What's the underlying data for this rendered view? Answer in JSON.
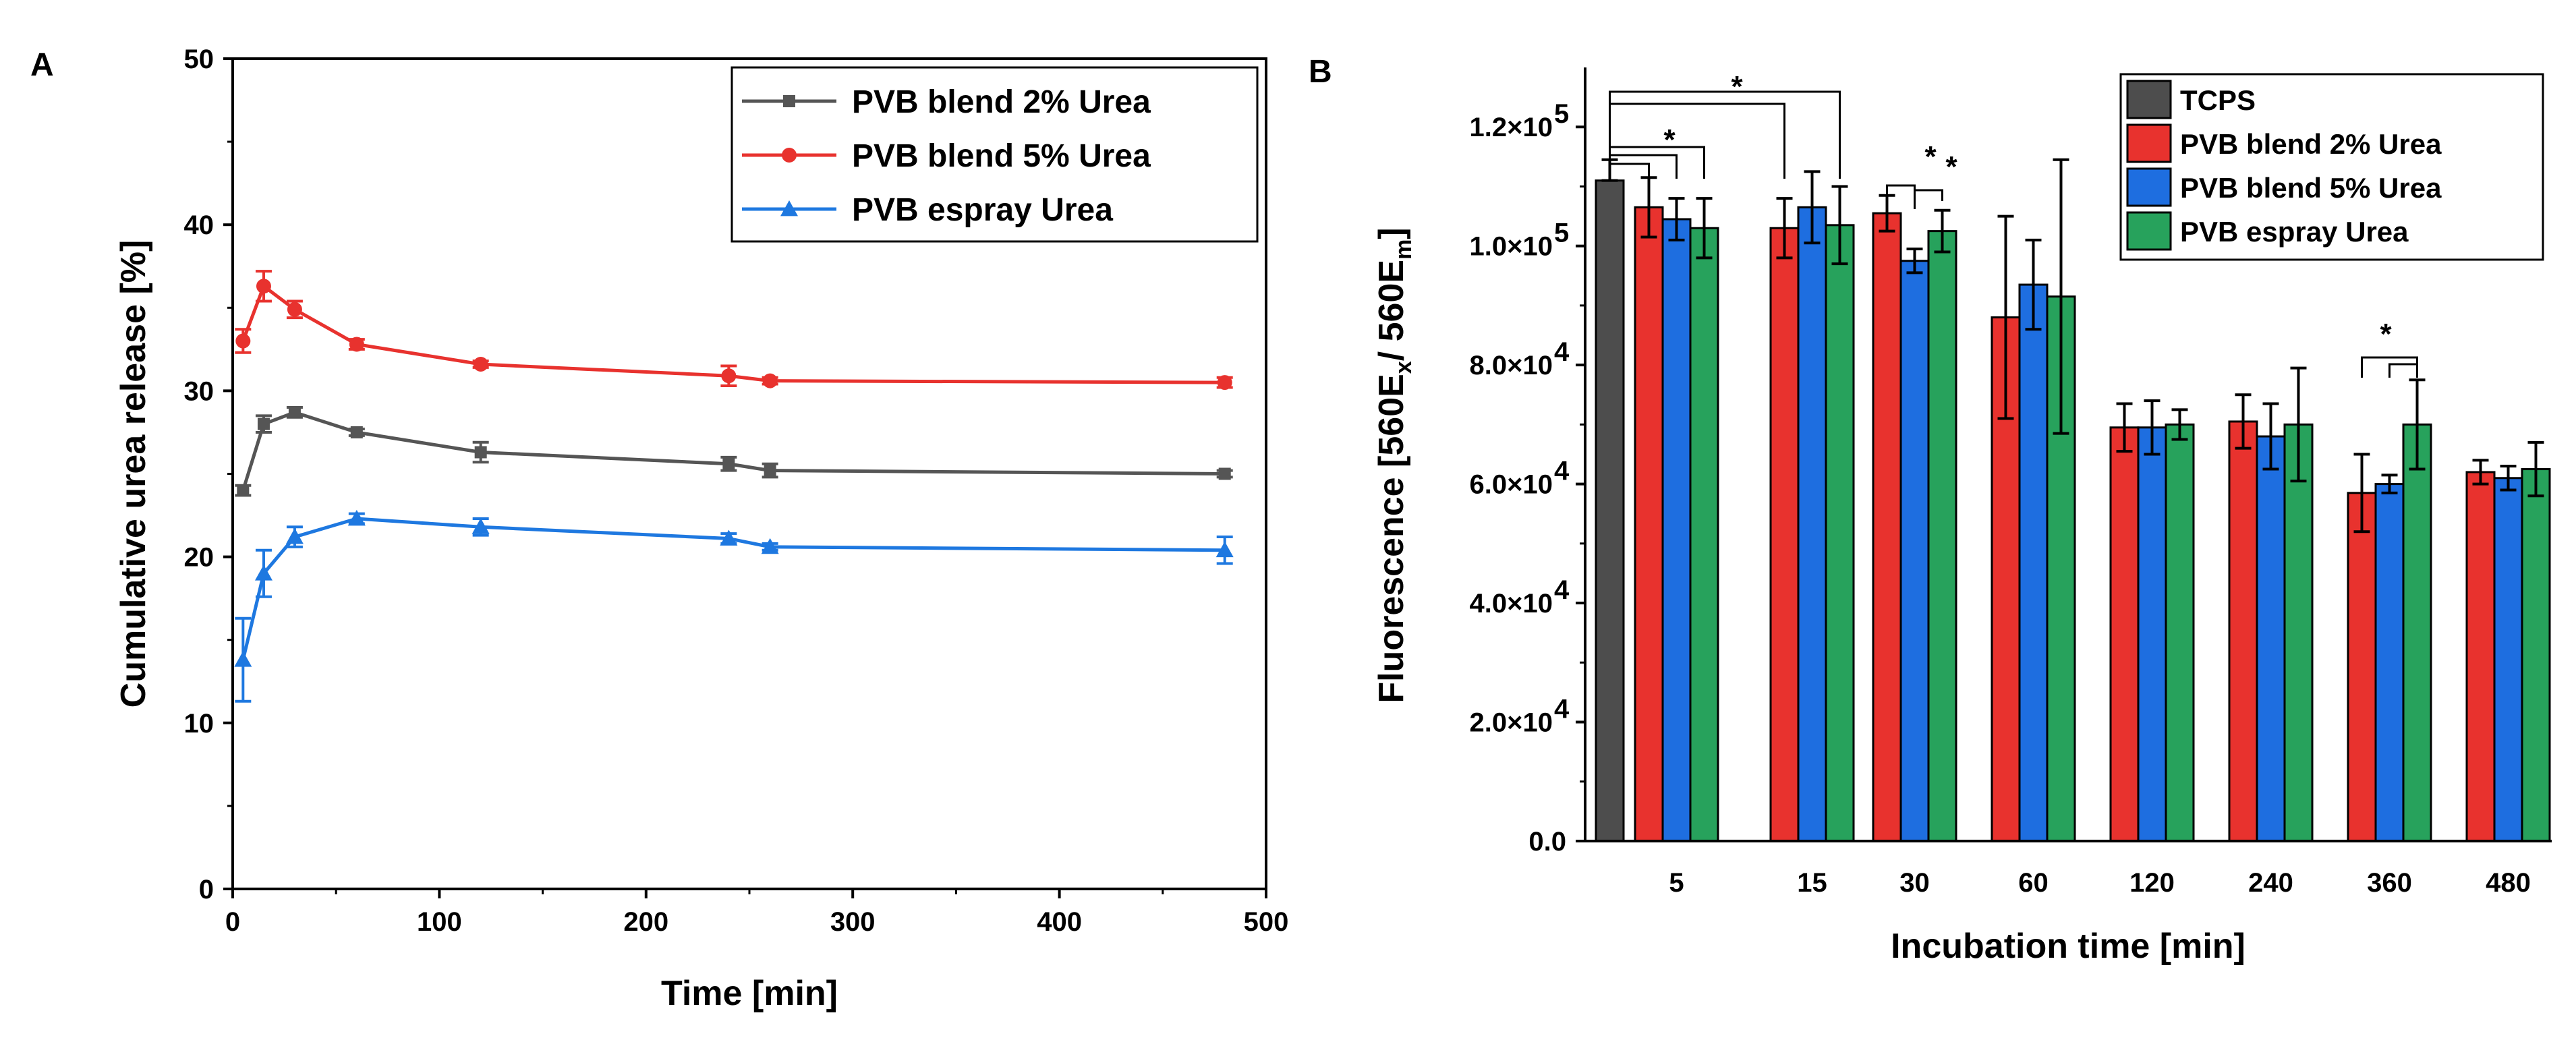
{
  "chart_data": [
    {
      "panel": "A",
      "type": "line",
      "xlabel": "Time [min]",
      "ylabel": "Cumulative urea release [%]",
      "xlim": [
        0,
        500
      ],
      "ylim": [
        0,
        50
      ],
      "xticks": [
        0,
        100,
        200,
        300,
        400,
        500
      ],
      "yticks": [
        0,
        10,
        20,
        30,
        40,
        50
      ],
      "legend_position": "top-right",
      "series": [
        {
          "name": "PVB blend 2% Urea",
          "color": "#555555",
          "marker": "square",
          "x": [
            5,
            15,
            30,
            60,
            120,
            240,
            260,
            480
          ],
          "y": [
            24.0,
            28.0,
            28.7,
            27.5,
            26.3,
            25.6,
            25.2,
            25.0
          ],
          "err": [
            0.3,
            0.5,
            0.3,
            0.2,
            0.6,
            0.4,
            0.4,
            0.2
          ]
        },
        {
          "name": "PVB blend 5% Urea",
          "color": "#e8322e",
          "marker": "circle",
          "x": [
            5,
            15,
            30,
            60,
            120,
            240,
            260,
            480
          ],
          "y": [
            33.0,
            36.3,
            34.9,
            32.8,
            31.6,
            30.9,
            30.6,
            30.5
          ],
          "err": [
            0.7,
            0.9,
            0.5,
            0.3,
            0.2,
            0.6,
            0.2,
            0.3
          ]
        },
        {
          "name": "PVB espray Urea",
          "color": "#1e78e0",
          "marker": "triangle",
          "x": [
            5,
            15,
            30,
            60,
            120,
            240,
            260,
            480
          ],
          "y": [
            13.8,
            19.0,
            21.2,
            22.3,
            21.8,
            21.1,
            20.6,
            20.4
          ],
          "err": [
            2.5,
            1.4,
            0.6,
            0.3,
            0.5,
            0.3,
            0.2,
            0.8
          ]
        }
      ]
    },
    {
      "panel": "B",
      "type": "bar",
      "xlabel": "Incubation time [min]",
      "ylabel": {
        "prefix": "Fluorescence [560E",
        "sub1": "x",
        "mid": "/ 560E",
        "sub2": "m",
        "suffix": "]"
      },
      "ylim": [
        0,
        130000
      ],
      "yticks": [
        {
          "value": 0,
          "label": "0.0",
          "exp": ""
        },
        {
          "value": 20000,
          "label": "2.0×10",
          "exp": "4"
        },
        {
          "value": 40000,
          "label": "4.0×10",
          "exp": "4"
        },
        {
          "value": 60000,
          "label": "6.0×10",
          "exp": "4"
        },
        {
          "value": 80000,
          "label": "8.0×10",
          "exp": "4"
        },
        {
          "value": 100000,
          "label": "1.0×10",
          "exp": "5"
        },
        {
          "value": 120000,
          "label": "1.2×10",
          "exp": "5"
        }
      ],
      "legend_position": "top-right",
      "control": {
        "name": "TCPS",
        "color": "#4d4d4d",
        "value": 111000,
        "err": 3500
      },
      "categories": [
        "5",
        "15",
        "30",
        "60",
        "120",
        "240",
        "360",
        "480"
      ],
      "series": [
        {
          "name": "PVB blend 2% Urea",
          "color": "#e8322e",
          "values": [
            106500,
            103000,
            105500,
            88000,
            69500,
            70500,
            58500,
            62000
          ],
          "err": [
            5000,
            5000,
            3000,
            17000,
            4000,
            4500,
            6500,
            2000
          ]
        },
        {
          "name": "PVB blend 5% Urea",
          "color": "#1e6ee0",
          "values": [
            104500,
            106500,
            97500,
            93500,
            69500,
            68000,
            60000,
            61000
          ],
          "err": [
            3500,
            6000,
            2000,
            7500,
            4500,
            5500,
            1500,
            2000
          ]
        },
        {
          "name": "PVB espray Urea",
          "color": "#27a25c",
          "values": [
            103000,
            103500,
            102500,
            91500,
            70000,
            70000,
            70000,
            62500
          ],
          "err": [
            5000,
            6500,
            3500,
            23000,
            2500,
            9500,
            7500,
            4500
          ]
        }
      ],
      "significance": [
        {
          "label": "*",
          "comparison": "TCPS vs 5 min groups"
        },
        {
          "label": "*",
          "comparison": "TCPS vs 15 min groups"
        },
        {
          "label": "*",
          "comparison": "30 min: PVB blend 2% Urea vs PVB blend 5% Urea"
        },
        {
          "label": "*",
          "comparison": "30 min: PVB blend 5% Urea vs PVB espray Urea"
        },
        {
          "label": "*",
          "comparison": "360 min: PVB espray Urea vs blends"
        }
      ]
    }
  ],
  "panel_labels": {
    "a": "A",
    "b": "B"
  }
}
